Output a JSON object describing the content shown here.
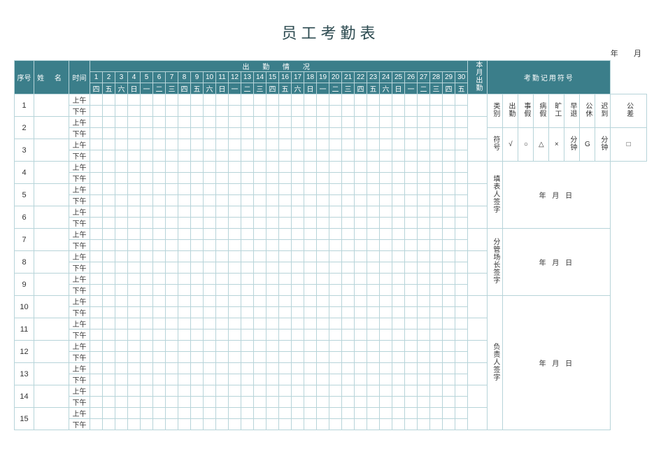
{
  "title": "员工考勤表",
  "top_date": {
    "year_lbl": "年",
    "month_lbl": "月"
  },
  "header": {
    "index": "序号",
    "name": "姓 名",
    "time": "时间",
    "attendance_group": "出 勤 情 况",
    "month_total": "本月出勤",
    "legend_title": "考勤记用符号"
  },
  "days": [
    "1",
    "2",
    "3",
    "4",
    "5",
    "6",
    "7",
    "8",
    "9",
    "10",
    "11",
    "12",
    "13",
    "14",
    "15",
    "16",
    "17",
    "18",
    "19",
    "20",
    "21",
    "22",
    "23",
    "24",
    "25",
    "26",
    "27",
    "28",
    "29",
    "30"
  ],
  "weekdays": [
    "四",
    "五",
    "六",
    "日",
    "一",
    "二",
    "三",
    "四",
    "五",
    "六",
    "日",
    "一",
    "二",
    "三",
    "四",
    "五",
    "六",
    "日",
    "一",
    "二",
    "三",
    "四",
    "五",
    "六",
    "日",
    "一",
    "二",
    "三",
    "四",
    "五"
  ],
  "time_rows": {
    "am": "上午",
    "pm": "下午"
  },
  "row_count": 15,
  "legend": {
    "cat_label": "类别",
    "sym_label": "符号",
    "cats": [
      "出勤",
      "事假",
      "病假",
      "旷工",
      "早退",
      "公休",
      "迟到",
      "公差"
    ],
    "syms": [
      "√",
      "○",
      "△",
      "×",
      "分钟",
      "G",
      "分钟",
      "□"
    ]
  },
  "signatures": {
    "filler": "填表人签字",
    "branch": "分管场长签字",
    "owner": "负责人签字",
    "date_fmt": "年  月  日"
  },
  "colors": {
    "teal": "#3b7e8a",
    "grid": "#b7d4d9",
    "text": "#333333",
    "bg": "#ffffff"
  }
}
